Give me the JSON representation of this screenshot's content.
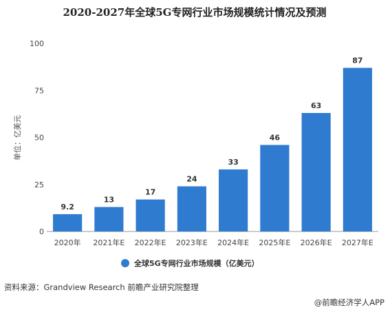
{
  "chart_data": {
    "type": "bar",
    "title": "2020-2027年全球5G专网行业市场规模统计情况及预测",
    "ylabel": "单位：亿美元",
    "categories": [
      "2020年",
      "2021年E",
      "2022年E",
      "2023年E",
      "2024年E",
      "2025年E",
      "2026年E",
      "2027年E"
    ],
    "series": [
      {
        "name": "全球5G专网行业市场规模（亿美元）",
        "values": [
          9.2,
          13,
          17,
          24,
          33,
          46,
          63,
          87
        ]
      }
    ],
    "data_labels": [
      "9.2",
      "13",
      "17",
      "24",
      "33",
      "46",
      "63",
      "87"
    ],
    "ylim": [
      0,
      100
    ],
    "yticks": [
      0,
      25,
      50,
      75,
      100
    ],
    "grid": false,
    "legend_position": "bottom",
    "colors": {
      "bar": "#2e7bd0",
      "axis": "#999999"
    }
  },
  "footer": {
    "source": "资料来源：Grandview Research 前瞻产业研究院整理",
    "brand": "@前瞻经济学人APP"
  }
}
